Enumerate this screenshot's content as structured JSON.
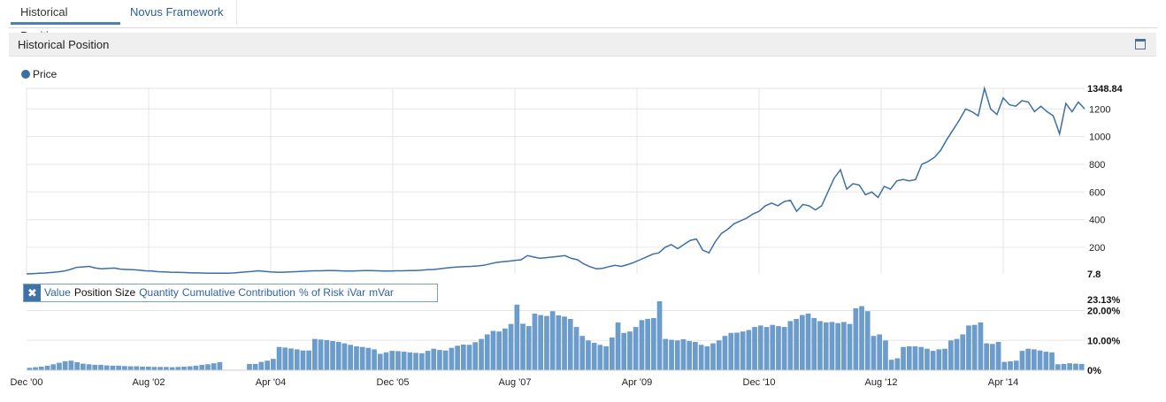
{
  "tabs": [
    {
      "label": "Historical Position",
      "active": true
    },
    {
      "label": "Novus Framework",
      "active": false
    }
  ],
  "panel": {
    "title": "Historical Position"
  },
  "legend": {
    "label": "Price",
    "color": "#3c6fa3"
  },
  "metric_tabs": {
    "items": [
      "Value",
      "Position Size",
      "Quantity",
      "Cumulative Contribution",
      "% of Risk",
      "iVar",
      "mVar"
    ],
    "selected": "Position Size"
  },
  "colors": {
    "line": "#3c6fa3",
    "bar": "#6b9ccb",
    "grid": "#e6e6e6"
  },
  "chart_data": [
    {
      "type": "line",
      "series": [
        {
          "name": "Price"
        }
      ],
      "x_tick_labels": [
        "Dec '00",
        "Aug '02",
        "Apr '04",
        "Dec '05",
        "Aug '07",
        "Apr '09",
        "Dec '10",
        "Aug '12",
        "Apr '14"
      ],
      "y_tick_labels": [
        "200",
        "400",
        "600",
        "800",
        "1000",
        "1200"
      ],
      "y_max_label": "1348.84",
      "y_min_label": "7.8",
      "ylim": [
        7.8,
        1348.84
      ],
      "values": [
        7.8,
        10,
        12,
        14,
        18,
        22,
        28,
        40,
        55,
        58,
        62,
        50,
        45,
        48,
        50,
        42,
        40,
        38,
        35,
        30,
        28,
        24,
        22,
        20,
        19,
        18,
        16,
        15,
        14,
        13,
        12,
        12,
        13,
        14,
        18,
        22,
        25,
        30,
        26,
        22,
        20,
        20,
        22,
        24,
        26,
        28,
        30,
        30,
        32,
        32,
        30,
        28,
        28,
        30,
        32,
        32,
        30,
        28,
        28,
        30,
        30,
        32,
        32,
        34,
        38,
        40,
        45,
        50,
        55,
        58,
        60,
        62,
        65,
        70,
        80,
        90,
        95,
        100,
        105,
        110,
        140,
        130,
        120,
        125,
        130,
        135,
        140,
        120,
        110,
        80,
        60,
        45,
        48,
        60,
        70,
        62,
        75,
        90,
        110,
        130,
        150,
        160,
        200,
        220,
        190,
        220,
        250,
        260,
        180,
        160,
        240,
        300,
        330,
        370,
        390,
        410,
        440,
        460,
        500,
        520,
        500,
        530,
        540,
        460,
        510,
        500,
        470,
        500,
        600,
        700,
        760,
        620,
        660,
        650,
        580,
        600,
        560,
        640,
        620,
        680,
        690,
        680,
        690,
        800,
        820,
        850,
        900,
        980,
        1050,
        1120,
        1200,
        1180,
        1150,
        1348.84,
        1200,
        1160,
        1280,
        1230,
        1220,
        1260,
        1250,
        1180,
        1220,
        1180,
        1150,
        1020,
        1240,
        1180,
        1250,
        1200
      ]
    },
    {
      "type": "bar",
      "series": [
        {
          "name": "Position Size"
        }
      ],
      "y_tick_labels": [
        "0%",
        "10.00%",
        "20.00%"
      ],
      "y_max_label": "23.13%",
      "ylim": [
        0,
        23.13
      ],
      "unit": "%",
      "values": [
        0.8,
        1.0,
        1.2,
        1.5,
        2.0,
        2.5,
        3.0,
        3.2,
        2.7,
        2.2,
        2.0,
        1.8,
        1.8,
        1.6,
        1.5,
        1.5,
        1.4,
        1.3,
        1.3,
        1.2,
        1.2,
        1.1,
        1.1,
        1.1,
        1.0,
        1.1,
        1.2,
        1.3,
        1.5,
        1.8,
        2.0,
        2.3,
        2.7,
        0,
        0,
        0,
        0,
        2.1,
        2.1,
        2.8,
        3.2,
        3.8,
        7.8,
        7.6,
        7.3,
        7.0,
        6.6,
        6.6,
        10.5,
        10.3,
        10.1,
        9.8,
        9.5,
        9.0,
        8.5,
        8.0,
        7.8,
        7.5,
        7.0,
        5.5,
        6.0,
        6.5,
        6.4,
        6.2,
        6.0,
        5.8,
        5.7,
        6.5,
        7.2,
        6.8,
        6.6,
        7.5,
        8.2,
        8.6,
        8.5,
        9.4,
        10.5,
        12.0,
        13.2,
        13.0,
        14.0,
        15.5,
        22.0,
        15.6,
        14.8,
        19.0,
        18.5,
        18.2,
        19.8,
        18.4,
        18.0,
        17.2,
        14.5,
        11.5,
        10.0,
        9.2,
        8.5,
        8.0,
        11.0,
        16.0,
        12.5,
        13.0,
        14.5,
        16.8,
        17.2,
        17.5,
        23.13,
        10.5,
        10.2,
        10.0,
        10.4,
        9.8,
        9.5,
        8.5,
        8.0,
        9.0,
        10.0,
        11.5,
        12.5,
        12.6,
        13.0,
        13.5,
        14.5,
        15.0,
        14.5,
        15.2,
        14.8,
        14.5,
        16.5,
        17.2,
        18.5,
        19.0,
        17.5,
        16.5,
        16.0,
        16.2,
        15.8,
        16.2,
        15.5,
        20.8,
        21.5,
        19.8,
        11.5,
        12.0,
        10.0,
        3.5,
        4.0,
        7.8,
        8.0,
        8.0,
        7.8,
        7.2,
        6.5,
        7.0,
        7.2,
        10.0,
        10.5,
        12.0,
        15.0,
        15.2,
        16.0,
        9.0,
        8.8,
        9.5,
        2.8,
        3.0,
        3.2,
        6.5,
        7.2,
        7.0,
        6.6,
        6.2,
        6.0,
        2.0,
        2.1,
        2.3,
        2.2,
        2.1
      ]
    }
  ]
}
